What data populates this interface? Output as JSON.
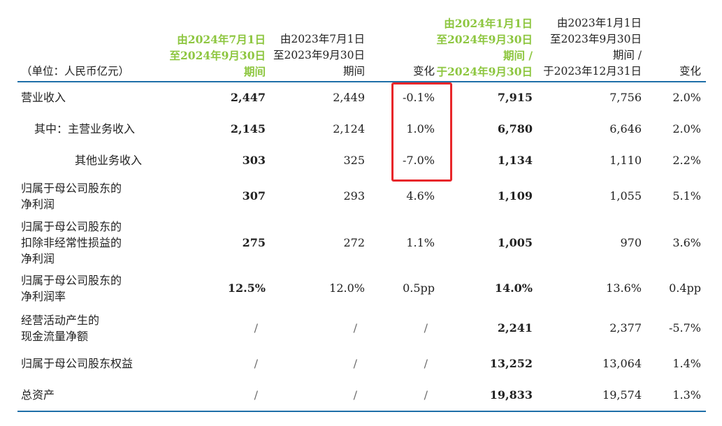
{
  "header": {
    "unit_label": "（单位：人民币亿元）",
    "col1": [
      "由2024年7月1日",
      "至2024年9月30日",
      "期间"
    ],
    "col2": [
      "由2023年7月1日",
      "至2023年9月30日",
      "期间"
    ],
    "col3": [
      "变化"
    ],
    "col4": [
      "由2024年1月1日",
      "至2024年9月30日",
      "期间 /",
      "于2024年9月30日"
    ],
    "col5": [
      "由2023年1月1日",
      "至2023年9月30日",
      "期间 /",
      "于2023年12月31日"
    ],
    "col6": [
      "变化"
    ]
  },
  "rows": [
    {
      "label": [
        "营业收入"
      ],
      "c1": "2,447",
      "c2": "2,449",
      "c3": "-0.1%",
      "c4": "7,915",
      "c5": "7,756",
      "c6": "2.0%"
    },
    {
      "label": [
        "其中：主营业务收入"
      ],
      "c1": "2,145",
      "c2": "2,124",
      "c3": "1.0%",
      "c4": "6,780",
      "c5": "6,646",
      "c6": "2.0%"
    },
    {
      "label": [
        "其他业务收入"
      ],
      "c1": "303",
      "c2": "325",
      "c3": "-7.0%",
      "c4": "1,134",
      "c5": "1,110",
      "c6": "2.2%"
    },
    {
      "label": [
        "归属于母公司股东的",
        "净利润"
      ],
      "c1": "307",
      "c2": "293",
      "c3": "4.6%",
      "c4": "1,109",
      "c5": "1,055",
      "c6": "5.1%"
    },
    {
      "label": [
        "归属于母公司股东的",
        "扣除非经常性损益的",
        "净利润"
      ],
      "c1": "275",
      "c2": "272",
      "c3": "1.1%",
      "c4": "1,005",
      "c5": "970",
      "c6": "3.6%"
    },
    {
      "label": [
        "归属于母公司股东的",
        "净利润率"
      ],
      "c1": "12.5%",
      "c2": "12.0%",
      "c3": "0.5pp",
      "c4": "14.0%",
      "c5": "13.6%",
      "c6": "0.4pp"
    },
    {
      "label": [
        "经营活动产生的",
        "现金流量净额"
      ],
      "c1": "/",
      "c2": "/",
      "c3": "/",
      "c4": "2,241",
      "c5": "2,377",
      "c6": "-5.7%"
    },
    {
      "label": [
        "归属于母公司股东权益"
      ],
      "c1": "/",
      "c2": "/",
      "c3": "/",
      "c4": "13,252",
      "c5": "13,064",
      "c6": "1.4%"
    },
    {
      "label": [
        "总资产"
      ],
      "c1": "/",
      "c2": "/",
      "c3": "/",
      "c4": "19,833",
      "c5": "19,574",
      "c6": "1.3%"
    }
  ],
  "colors": {
    "highlight_header": "#8dc63f",
    "rule": "#1f6fa8",
    "annotation_box": "#e8262a"
  }
}
